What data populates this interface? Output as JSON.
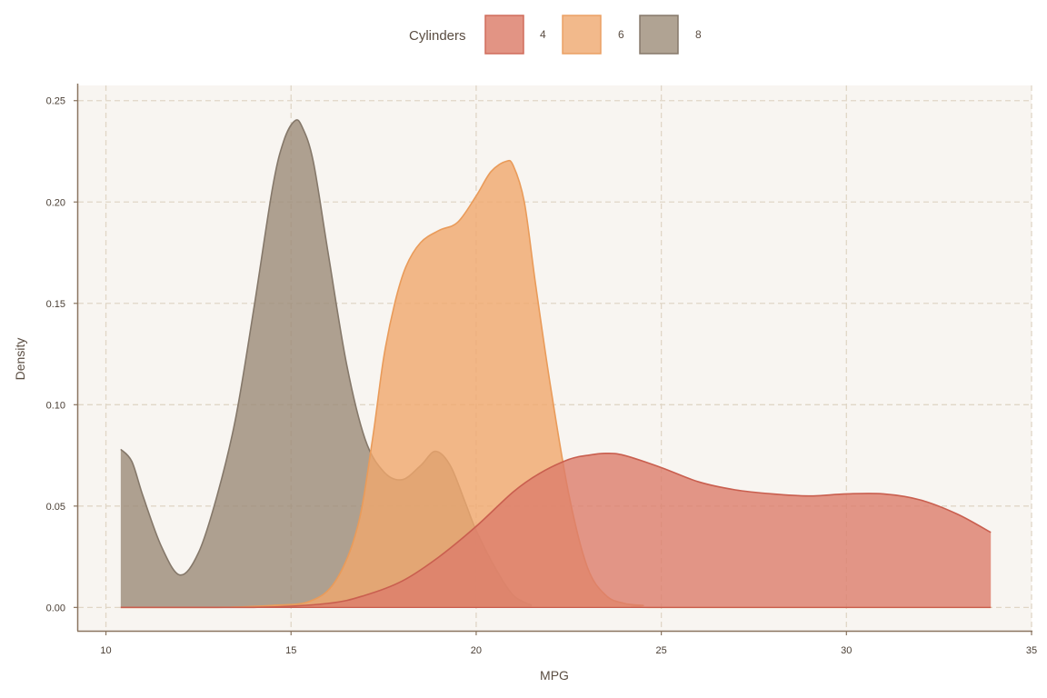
{
  "chart_data": {
    "type": "area",
    "xlabel": "MPG",
    "ylabel": "Density",
    "xlim": [
      9.25,
      35.0
    ],
    "ylim": [
      -0.0115,
      0.2575
    ],
    "x_ticks": [
      10,
      15,
      20,
      25,
      30,
      35
    ],
    "x_tick_labels": [
      "10",
      "15",
      "20",
      "25",
      "30",
      "35"
    ],
    "y_ticks": [
      0.0,
      0.05,
      0.1,
      0.15,
      0.2,
      0.25
    ],
    "y_tick_labels": [
      "0.00",
      "0.05",
      "0.10",
      "0.15",
      "0.20",
      "0.25"
    ],
    "grid": true,
    "legend": {
      "title": "Cylinders",
      "placement": "top-center",
      "entries": [
        "4",
        "6",
        "8"
      ]
    },
    "colors": {
      "4": "#dc7d6c",
      "6": "#f0a86d",
      "8": "#9b8b78",
      "4_stroke": "#c95f4f",
      "6_stroke": "#e99b5a",
      "8_stroke": "#85786a",
      "panel_bg": "#f8f5f1",
      "grid": "#e0d6c6",
      "axis": "#8a7560"
    },
    "series": [
      {
        "name": "8",
        "x": [
          10.4,
          10.7,
          11.0,
          11.5,
          12.0,
          12.5,
          13.0,
          13.5,
          14.0,
          14.5,
          14.8,
          15.1,
          15.3,
          15.6,
          16.0,
          16.5,
          17.0,
          17.5,
          18.0,
          18.5,
          18.9,
          19.3,
          19.7,
          20.0,
          20.5,
          21.0,
          21.5
        ],
        "values": [
          0.078,
          0.072,
          0.055,
          0.03,
          0.016,
          0.027,
          0.055,
          0.093,
          0.148,
          0.207,
          0.23,
          0.24,
          0.237,
          0.22,
          0.175,
          0.12,
          0.083,
          0.067,
          0.063,
          0.07,
          0.077,
          0.07,
          0.052,
          0.038,
          0.02,
          0.006,
          0.001
        ]
      },
      {
        "name": "6",
        "x": [
          10.4,
          13.0,
          14.5,
          15.5,
          16.2,
          16.8,
          17.2,
          17.5,
          17.8,
          18.1,
          18.5,
          19.0,
          19.5,
          20.0,
          20.4,
          20.8,
          21.0,
          21.3,
          21.6,
          22.0,
          22.5,
          23.0,
          23.5,
          24.0,
          24.5,
          25.0,
          33.9
        ],
        "values": [
          0.0,
          0.0,
          0.001,
          0.003,
          0.013,
          0.04,
          0.083,
          0.123,
          0.15,
          0.168,
          0.18,
          0.186,
          0.19,
          0.203,
          0.215,
          0.22,
          0.218,
          0.2,
          0.16,
          0.11,
          0.056,
          0.02,
          0.006,
          0.002,
          0.001,
          0.0,
          0.0
        ]
      },
      {
        "name": "4",
        "x": [
          10.4,
          14.0,
          16.0,
          17.0,
          18.0,
          19.0,
          20.0,
          21.0,
          21.7,
          22.5,
          23.0,
          23.5,
          24.0,
          25.0,
          26.0,
          27.0,
          28.0,
          29.0,
          30.0,
          31.0,
          32.0,
          33.0,
          33.9
        ],
        "values": [
          0.0,
          0.0,
          0.002,
          0.006,
          0.013,
          0.025,
          0.04,
          0.057,
          0.066,
          0.073,
          0.075,
          0.076,
          0.075,
          0.069,
          0.062,
          0.058,
          0.056,
          0.055,
          0.056,
          0.056,
          0.053,
          0.046,
          0.037
        ]
      }
    ]
  }
}
